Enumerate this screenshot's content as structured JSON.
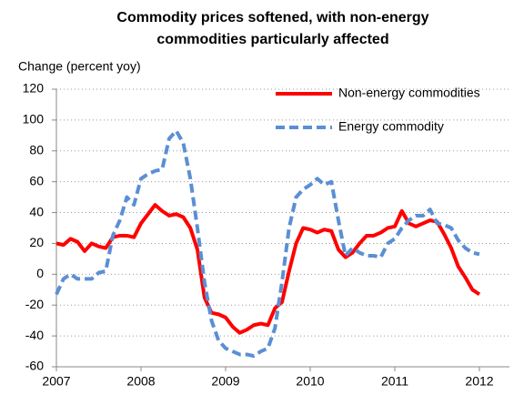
{
  "chart_data": {
    "type": "line",
    "title": [
      "Commodity prices softened, with non-energy",
      "commodities particularly affected"
    ],
    "y_label": "Change (percent yoy)",
    "categories": [
      "2007",
      null,
      null,
      null,
      null,
      null,
      null,
      null,
      null,
      null,
      null,
      null,
      "2008",
      null,
      null,
      null,
      null,
      null,
      null,
      null,
      null,
      null,
      null,
      null,
      "2009",
      null,
      null,
      null,
      null,
      null,
      null,
      null,
      null,
      null,
      null,
      null,
      "2010",
      null,
      null,
      null,
      null,
      null,
      null,
      null,
      null,
      null,
      null,
      null,
      "2011",
      null,
      null,
      null,
      null,
      null,
      null,
      null,
      null,
      null,
      null,
      null,
      "2012"
    ],
    "series": [
      {
        "name": "Non-energy commodities",
        "color": "#ff0000",
        "dash": false,
        "values": [
          20,
          19,
          23,
          21,
          15,
          20,
          18,
          17,
          24,
          25,
          25,
          24,
          33,
          39,
          45,
          41,
          38,
          39,
          37,
          30,
          16,
          -15,
          -25,
          -26,
          -28,
          -34,
          -38,
          -36,
          -33,
          -32,
          -33,
          -22,
          -18,
          2,
          20,
          30,
          29,
          27,
          29,
          28,
          16,
          11,
          14,
          20,
          25,
          25,
          27,
          30,
          31,
          41,
          33,
          31,
          33,
          35,
          34,
          26,
          17,
          5,
          -2,
          -10,
          -13
        ]
      },
      {
        "name": "Energy commodity",
        "color": "#5b8fd4",
        "dash": true,
        "values": [
          -13,
          -3,
          0,
          -3,
          -3,
          -3,
          1,
          2,
          25,
          35,
          50,
          45,
          62,
          65,
          67,
          68,
          88,
          93,
          85,
          62,
          30,
          -5,
          -30,
          -43,
          -48,
          -50,
          -52,
          -52,
          -53,
          -50,
          -48,
          -35,
          -5,
          30,
          50,
          55,
          58,
          62,
          58,
          60,
          35,
          12,
          17,
          14,
          12,
          12,
          11,
          20,
          23,
          30,
          35,
          38,
          38,
          42,
          33,
          32,
          30,
          22,
          17,
          14,
          13
        ]
      }
    ],
    "ylim": [
      -60,
      120
    ],
    "yticks": [
      -60,
      -40,
      -20,
      0,
      20,
      40,
      60,
      80,
      100,
      120
    ],
    "grid": true
  }
}
